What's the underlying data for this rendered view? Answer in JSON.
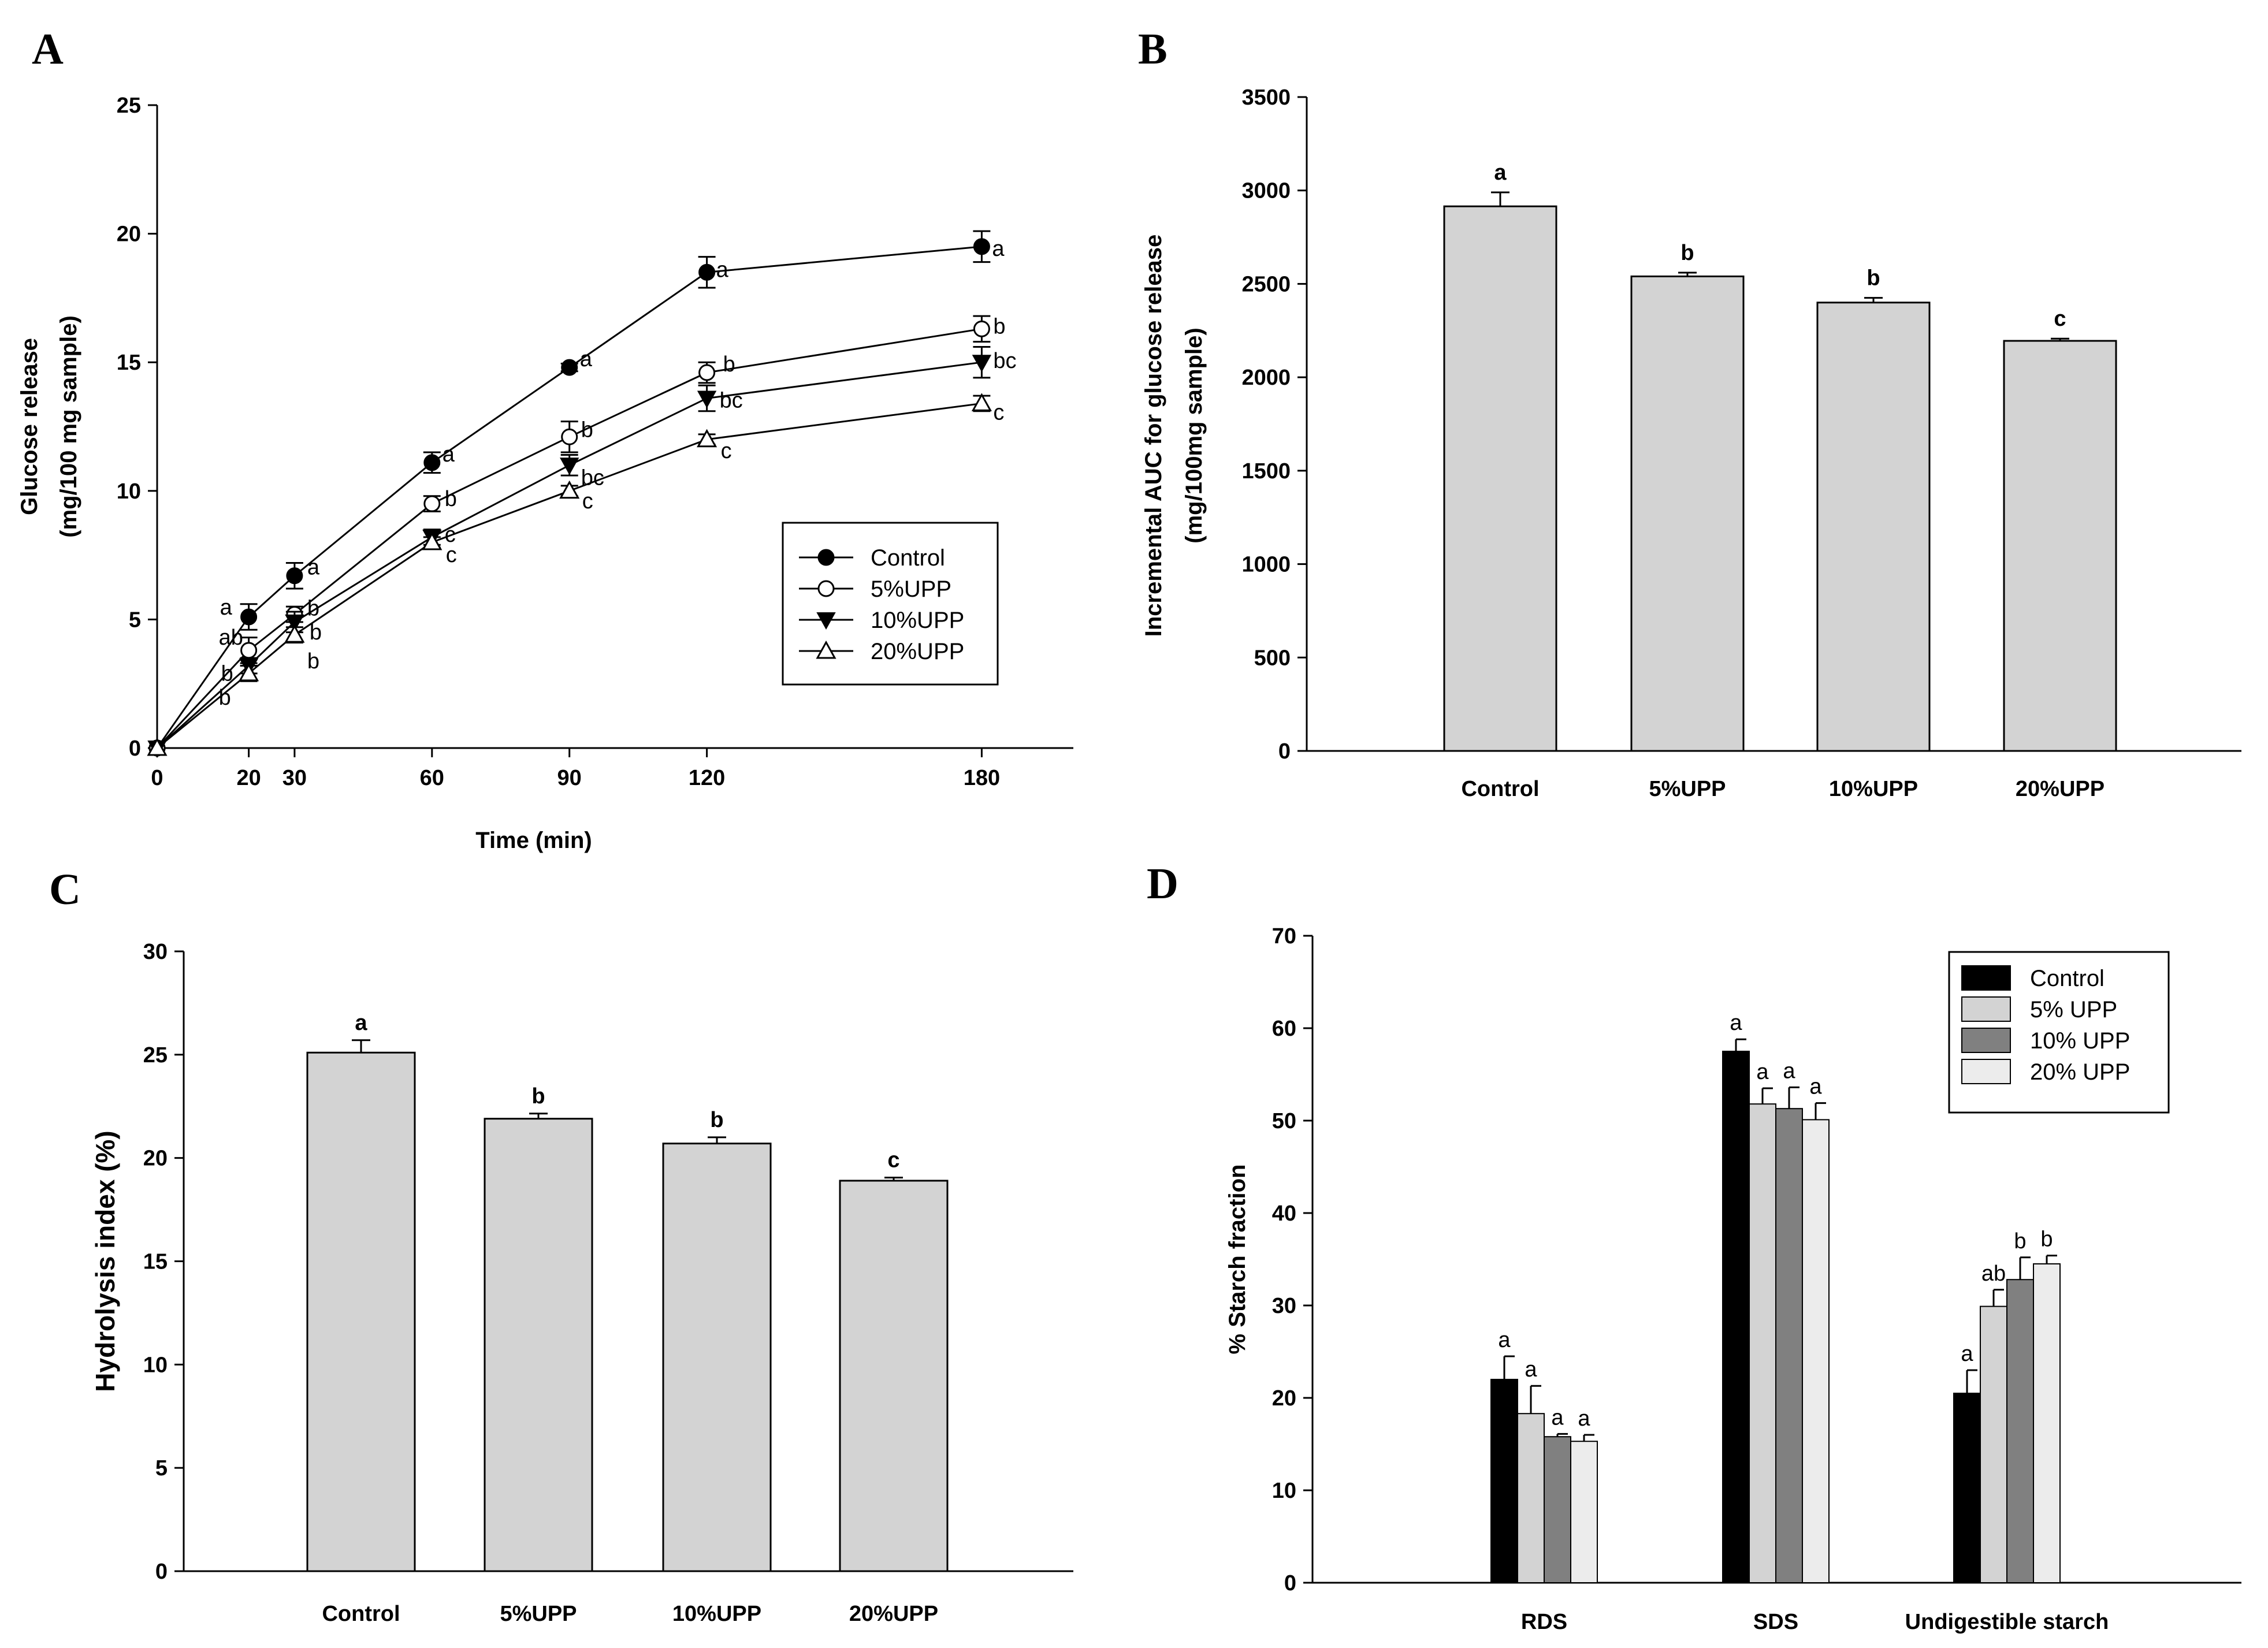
{
  "panels": {
    "A": "A",
    "B": "B",
    "C": "C",
    "D": "D"
  },
  "chart_data": [
    {
      "panel": "A",
      "type": "line",
      "xlabel": "Time (min)",
      "ylabel_line1": "Glucose release",
      "ylabel_line2": "(mg/100 mg sample)",
      "xlim": [
        0,
        200
      ],
      "ylim": [
        0,
        25
      ],
      "x_ticks": [
        0,
        20,
        30,
        60,
        90,
        120,
        180
      ],
      "y_ticks": [
        0,
        5,
        10,
        15,
        20,
        25
      ],
      "x": [
        0,
        20,
        30,
        60,
        90,
        120,
        180
      ],
      "legend_position": "center-right",
      "series": [
        {
          "name": "Control",
          "marker": "circle-filled",
          "values": [
            0,
            5.1,
            6.7,
            11.1,
            14.8,
            18.5,
            19.5
          ],
          "errors": [
            0,
            0.5,
            0.5,
            0.4,
            0.15,
            0.6,
            0.6
          ],
          "labels": [
            "",
            "a",
            "a",
            "a",
            "a",
            "a",
            "a"
          ]
        },
        {
          "name": "5%UPP",
          "marker": "circle-open",
          "values": [
            0,
            3.8,
            5.2,
            9.5,
            12.1,
            14.6,
            16.3
          ],
          "errors": [
            0,
            0.5,
            0.3,
            0.3,
            0.6,
            0.4,
            0.5
          ],
          "labels": [
            "",
            "ab",
            "b",
            "b",
            "b",
            "b",
            "b"
          ]
        },
        {
          "name": "10%UPP",
          "marker": "triangle-down-filled",
          "values": [
            0,
            3.2,
            4.9,
            8.2,
            11.0,
            13.6,
            15.0
          ],
          "errors": [
            0,
            0.3,
            0.4,
            0.3,
            0.4,
            0.5,
            0.6
          ],
          "labels": [
            "",
            "b",
            "b",
            "c",
            "bc",
            "bc",
            "bc"
          ]
        },
        {
          "name": "20%UPP",
          "marker": "triangle-up-open",
          "values": [
            0,
            2.9,
            4.4,
            8.0,
            10.0,
            12.0,
            13.4
          ],
          "errors": [
            0,
            0.3,
            0.3,
            0.2,
            0.2,
            0.2,
            0.3
          ],
          "labels": [
            "",
            "b",
            "b",
            "c",
            "c",
            "c",
            "c"
          ]
        }
      ]
    },
    {
      "panel": "B",
      "type": "bar",
      "ylabel_line1": "Incremental AUC for glucose release",
      "ylabel_line2": "(mg/100mg sample)",
      "categories": [
        "Control",
        "5%UPP",
        "10%UPP",
        "20%UPP"
      ],
      "values": [
        2915,
        2540,
        2400,
        2195
      ],
      "errors": [
        75,
        20,
        25,
        12
      ],
      "labels": [
        "a",
        "b",
        "b",
        "c"
      ],
      "ylim": [
        0,
        3500
      ],
      "y_ticks": [
        0,
        500,
        1000,
        1500,
        2000,
        2500,
        3000,
        3500
      ],
      "bar_color": "#d3d3d3"
    },
    {
      "panel": "C",
      "type": "bar",
      "ylabel": "Hydrolysis index (%)",
      "categories": [
        "Control",
        "5%UPP",
        "10%UPP",
        "20%UPP"
      ],
      "values": [
        25.1,
        21.9,
        20.7,
        18.9
      ],
      "errors": [
        0.6,
        0.25,
        0.3,
        0.15
      ],
      "labels": [
        "a",
        "b",
        "b",
        "c"
      ],
      "ylim": [
        0,
        30
      ],
      "y_ticks": [
        0,
        5,
        10,
        15,
        20,
        25,
        30
      ],
      "bar_color": "#d3d3d3"
    },
    {
      "panel": "D",
      "type": "bar",
      "ylabel": "% Starch fraction",
      "categories": [
        "RDS",
        "SDS",
        "Undigestible starch"
      ],
      "ylim": [
        0,
        70
      ],
      "y_ticks": [
        0,
        10,
        20,
        30,
        40,
        50,
        60,
        70
      ],
      "legend_position": "top-right",
      "series": [
        {
          "name": "Control",
          "color": "#000000",
          "values": [
            22.0,
            57.5,
            20.5
          ],
          "errors": [
            2.5,
            1.3,
            2.5
          ],
          "labels": [
            "a",
            "a",
            "a"
          ]
        },
        {
          "name": "5% UPP",
          "color": "#d3d3d3",
          "values": [
            18.3,
            51.8,
            29.9
          ],
          "errors": [
            3.0,
            1.7,
            1.8
          ],
          "labels": [
            "a",
            "a",
            "ab"
          ]
        },
        {
          "name": "10% UPP",
          "color": "#808080",
          "values": [
            15.8,
            51.3,
            32.8
          ],
          "errors": [
            0.3,
            2.3,
            2.4
          ],
          "labels": [
            "a",
            "a",
            "b"
          ]
        },
        {
          "name": "20% UPP",
          "color": "#ececec",
          "values": [
            15.3,
            50.1,
            34.5
          ],
          "errors": [
            0.7,
            1.8,
            0.9
          ],
          "labels": [
            "a",
            "a",
            "b"
          ]
        }
      ]
    }
  ]
}
